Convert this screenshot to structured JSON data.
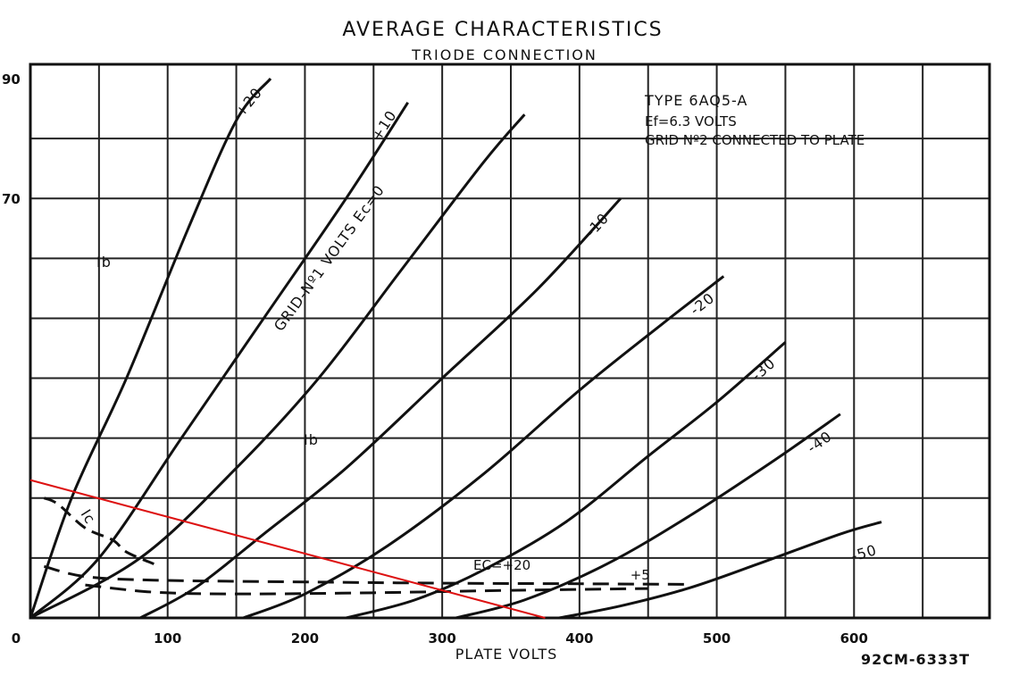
{
  "chart_data": {
    "type": "line",
    "title": "AVERAGE CHARACTERISTICS",
    "subtitle": "TRIODE CONNECTION",
    "xlabel": "PLATE VOLTS",
    "xlim": [
      0,
      700
    ],
    "ylim": [
      0,
      90
    ],
    "x_ticks": [
      0,
      100,
      200,
      300,
      400,
      500,
      600
    ],
    "x_tick_labels": [
      "0",
      "100",
      "200",
      "300",
      "400",
      "500",
      "600"
    ],
    "y_tick_labels": [
      {
        "value": 90,
        "label": "90"
      },
      {
        "value": 70,
        "label": "70"
      },
      {
        "value": 0,
        "label": "0"
      }
    ],
    "grid": true,
    "info_text": [
      "TYPE 6AQ5-A",
      "Ef=6.3 VOLTS",
      "GRID Nº2 CONNECTED TO PLATE"
    ],
    "family_label": "GRID-Nº1 VOLTS Ec=0",
    "plate_current_label": "Ib",
    "grid_current_label": "Ic",
    "ec_dashed_label": "EC=+20",
    "drawing_number": "92CM-6333T",
    "plate_current_series": [
      {
        "name": "+20",
        "points": [
          [
            0,
            0
          ],
          [
            30,
            20
          ],
          [
            70,
            40
          ],
          [
            115,
            65
          ],
          [
            150,
            83
          ],
          [
            175,
            90
          ]
        ]
      },
      {
        "name": "+10",
        "points": [
          [
            0,
            0
          ],
          [
            50,
            10
          ],
          [
            110,
            30
          ],
          [
            170,
            50
          ],
          [
            230,
            70
          ],
          [
            275,
            86
          ]
        ]
      },
      {
        "name": "0",
        "points": [
          [
            0,
            0
          ],
          [
            80,
            10
          ],
          [
            150,
            25
          ],
          [
            210,
            40
          ],
          [
            270,
            58
          ],
          [
            330,
            76
          ],
          [
            360,
            84
          ]
        ]
      },
      {
        "name": "-10",
        "points": [
          [
            80,
            0
          ],
          [
            120,
            5
          ],
          [
            170,
            14
          ],
          [
            230,
            25
          ],
          [
            300,
            40
          ],
          [
            370,
            55
          ],
          [
            430,
            70
          ]
        ]
      },
      {
        "name": "-20",
        "points": [
          [
            155,
            0
          ],
          [
            200,
            4
          ],
          [
            260,
            12
          ],
          [
            330,
            24
          ],
          [
            400,
            38
          ],
          [
            460,
            49
          ],
          [
            505,
            57
          ]
        ]
      },
      {
        "name": "-30",
        "points": [
          [
            230,
            0
          ],
          [
            280,
            3
          ],
          [
            330,
            8
          ],
          [
            390,
            16
          ],
          [
            450,
            27
          ],
          [
            500,
            36
          ],
          [
            550,
            46
          ]
        ]
      },
      {
        "name": "-40",
        "points": [
          [
            310,
            0
          ],
          [
            360,
            3
          ],
          [
            420,
            9
          ],
          [
            480,
            17
          ],
          [
            540,
            26
          ],
          [
            590,
            34
          ]
        ]
      },
      {
        "name": "-50",
        "points": [
          [
            385,
            0
          ],
          [
            430,
            2
          ],
          [
            480,
            5
          ],
          [
            530,
            9
          ],
          [
            590,
            14
          ],
          [
            620,
            16
          ]
        ]
      }
    ],
    "grid_current_series": [
      {
        "name": "+20",
        "points": [
          [
            10,
            8.6
          ],
          [
            40,
            6.9
          ],
          [
            90,
            6.3
          ],
          [
            200,
            6.0
          ],
          [
            300,
            5.8
          ],
          [
            400,
            5.7
          ],
          [
            480,
            5.6
          ]
        ]
      },
      {
        "name": "+5",
        "points": [
          [
            40,
            5.5
          ],
          [
            90,
            4.3
          ],
          [
            150,
            4.0
          ],
          [
            250,
            4.2
          ],
          [
            350,
            4.6
          ],
          [
            450,
            4.9
          ]
        ]
      }
    ],
    "grid_current_near_axis": {
      "points": [
        [
          10,
          20
        ],
        [
          20,
          19
        ],
        [
          40,
          15
        ],
        [
          60,
          13
        ],
        [
          70,
          11
        ],
        [
          90,
          9
        ]
      ]
    },
    "load_line": {
      "color": "#dd1111",
      "points": [
        [
          0,
          23
        ],
        [
          375,
          0
        ]
      ]
    }
  }
}
